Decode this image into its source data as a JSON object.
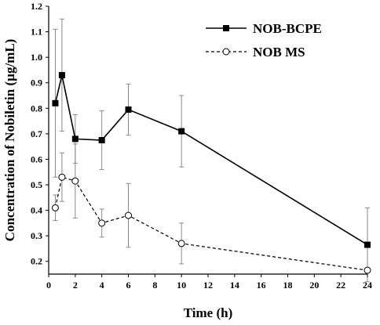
{
  "chart_data": {
    "type": "line",
    "title": "",
    "xlabel": "Time (h)",
    "ylabel": "Concentration of Nobiletin (µg/mL)",
    "xlim": [
      0,
      24
    ],
    "ylim": [
      0.15,
      1.2
    ],
    "xticks": [
      0,
      2,
      4,
      6,
      8,
      10,
      12,
      14,
      16,
      18,
      20,
      22,
      24
    ],
    "yticks": [
      0.2,
      0.3,
      0.4,
      0.5,
      0.6,
      0.7,
      0.8,
      0.9,
      1.0,
      1.1,
      1.2
    ],
    "ytick_labels": [
      "0.2",
      "0.3",
      "0.4",
      "0.5",
      "0.6",
      "0.7",
      "0.8",
      "0.9",
      "1.0",
      "1.1",
      "1.2"
    ],
    "grid": false,
    "legend_position": "top-right",
    "series": [
      {
        "name": "NOB-BCPE",
        "marker": "filled-square",
        "line_style": "solid",
        "color": "#000000",
        "x": [
          0.5,
          1,
          2,
          4,
          6,
          10,
          24
        ],
        "y": [
          0.82,
          0.93,
          0.68,
          0.675,
          0.795,
          0.71,
          0.265
        ],
        "error": [
          0.29,
          0.22,
          0.095,
          0.115,
          0.1,
          0.14,
          0.145
        ]
      },
      {
        "name": "NOB MS",
        "marker": "open-circle",
        "line_style": "dashed",
        "color": "#000000",
        "x": [
          0.5,
          1,
          2,
          4,
          6,
          10,
          24
        ],
        "y": [
          0.41,
          0.53,
          0.515,
          0.35,
          0.38,
          0.27,
          0.165
        ],
        "error": [
          0.05,
          0.095,
          0.145,
          0.055,
          0.125,
          0.08,
          0.0
        ]
      }
    ]
  }
}
